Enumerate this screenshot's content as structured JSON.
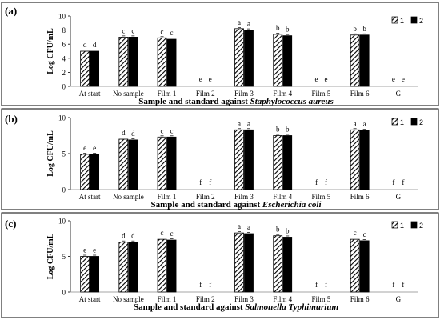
{
  "chart_data": [
    {
      "panel": "(a)",
      "type": "bar",
      "categories": [
        "At start",
        "No sample",
        "Film 1",
        "Film 2",
        "Film 3",
        "Film 4",
        "Film 5",
        "Film 6",
        "G"
      ],
      "series": [
        {
          "name": "1",
          "pattern": "hatched",
          "values": [
            5.0,
            7.0,
            6.9,
            0,
            8.2,
            7.4,
            0,
            7.3,
            0
          ]
        },
        {
          "name": "2",
          "pattern": "solid",
          "values": [
            5.0,
            7.0,
            6.7,
            0,
            8.0,
            7.2,
            0,
            7.3,
            0
          ]
        }
      ],
      "letters": [
        [
          "d",
          "d"
        ],
        [
          "c",
          "c"
        ],
        [
          "c",
          "c"
        ],
        [
          "e",
          "e"
        ],
        [
          "a",
          "a"
        ],
        [
          "b",
          "b"
        ],
        [
          "e",
          "e"
        ],
        [
          "b",
          "b"
        ],
        [
          "e",
          "e"
        ]
      ],
      "xlabel_plain": "Sample and standard against ",
      "xlabel_italic": "Staphylococcus aureus",
      "ylabel": "Log CFU/mL",
      "ylim": [
        0,
        10
      ],
      "yticks": [
        "0",
        "2",
        "4",
        "6",
        "8",
        "10"
      ]
    },
    {
      "panel": "(b)",
      "type": "bar",
      "categories": [
        "At start",
        "No sample",
        "Film 1",
        "Film 2",
        "Film 3",
        "Film 4",
        "Film 5",
        "Film 6",
        "G"
      ],
      "series": [
        {
          "name": "1",
          "pattern": "hatched",
          "values": [
            4.9,
            7.0,
            7.3,
            0,
            8.3,
            7.5,
            0,
            8.3,
            0
          ]
        },
        {
          "name": "2",
          "pattern": "solid",
          "values": [
            4.9,
            6.9,
            7.3,
            0,
            8.3,
            7.5,
            0,
            8.2,
            0
          ]
        }
      ],
      "letters": [
        [
          "e",
          "e"
        ],
        [
          "d",
          "d"
        ],
        [
          "c",
          "c"
        ],
        [
          "f",
          "f"
        ],
        [
          "a",
          "a"
        ],
        [
          "b",
          "b"
        ],
        [
          "f",
          "f"
        ],
        [
          "a",
          "a"
        ],
        [
          "f",
          "f"
        ]
      ],
      "xlabel_plain": "Sample and standard against ",
      "xlabel_italic": "Escherichia coli",
      "ylabel": "Log CFU/mL",
      "ylim": [
        0,
        10
      ],
      "yticks": [
        "0",
        "5",
        "10"
      ]
    },
    {
      "panel": "(c)",
      "type": "bar",
      "categories": [
        "At start",
        "No sample",
        "Film 1",
        "Film 2",
        "Film 3",
        "Film 4",
        "Film 5",
        "Film 6",
        "G"
      ],
      "series": [
        {
          "name": "1",
          "pattern": "hatched",
          "values": [
            5.0,
            7.0,
            7.4,
            0,
            8.3,
            7.9,
            0,
            7.4,
            0
          ]
        },
        {
          "name": "2",
          "pattern": "solid",
          "values": [
            5.0,
            7.0,
            7.3,
            0,
            8.2,
            7.7,
            0,
            7.2,
            0
          ]
        }
      ],
      "letters": [
        [
          "e",
          "e"
        ],
        [
          "d",
          "d"
        ],
        [
          "c",
          "c"
        ],
        [
          "f",
          "f"
        ],
        [
          "a",
          "a"
        ],
        [
          "b",
          "b"
        ],
        [
          "f",
          "f"
        ],
        [
          "c",
          "c"
        ],
        [
          "f",
          "f"
        ]
      ],
      "xlabel_plain": "Sample and standard against ",
      "xlabel_italic": "Salmonella Typhimurium",
      "ylabel": "Log CFU/mL",
      "ylim": [
        0,
        10
      ],
      "yticks": [
        "0",
        "5",
        "10"
      ]
    }
  ]
}
